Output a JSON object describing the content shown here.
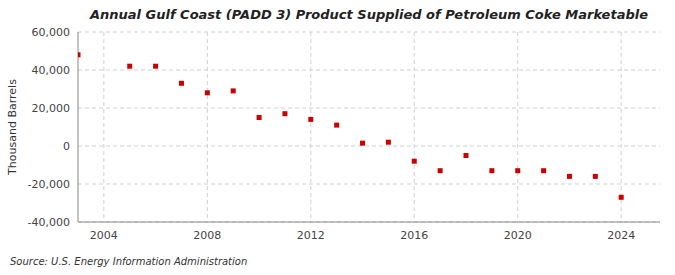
{
  "chart_data": {
    "type": "scatter",
    "title": "Annual Gulf Coast (PADD 3) Product Supplied of Petroleum Coke Marketable",
    "ylabel": "Thousand Barrels",
    "annotations": [
      "Source: U.S. Energy Information Administration"
    ],
    "x": [
      2003,
      2005,
      2006,
      2007,
      2008,
      2009,
      2010,
      2011,
      2012,
      2013,
      2014,
      2015,
      2016,
      2017,
      2018,
      2019,
      2020,
      2021,
      2022,
      2023,
      2024
    ],
    "values": [
      48000,
      42000,
      42000,
      33000,
      28000,
      29000,
      15000,
      17000,
      14000,
      11000,
      1500,
      2000,
      -8000,
      -13000,
      -5000,
      -13000,
      -13000,
      -13000,
      -16000,
      -16000,
      -27000
    ],
    "color": "#cc0000",
    "marker": "square",
    "xlim": [
      2003,
      2025.5
    ],
    "ylim": [
      -40000,
      60000
    ],
    "xticks": [
      2004,
      2008,
      2012,
      2016,
      2020,
      2024
    ],
    "yticks": [
      {
        "value": -40000,
        "label": "-40,000"
      },
      {
        "value": -20000,
        "label": "-20,000"
      },
      0,
      {
        "value": 20000,
        "label": "20,000"
      },
      {
        "value": 40000,
        "label": "40,000"
      },
      {
        "value": 60000,
        "label": "60,000"
      }
    ],
    "grid": true
  }
}
